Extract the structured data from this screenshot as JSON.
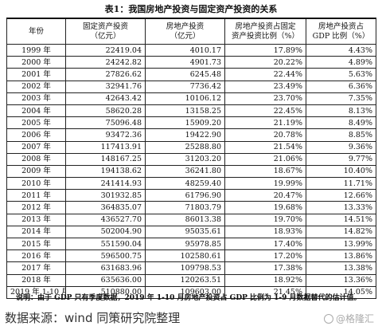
{
  "title": "表1：我国房地产投资与固定资产投资的关系",
  "headers": {
    "year": "年份",
    "fixed_investment": [
      "固定资产投资",
      "（亿元）"
    ],
    "real_estate_investment": [
      "房地产投资",
      "（亿元）"
    ],
    "re_share_of_fixed": [
      "房地产投资占固定",
      "资产投资比例（%）"
    ],
    "re_share_of_gdp": [
      "房地产投资占",
      "GDP 比例（%）"
    ]
  },
  "rows": [
    {
      "year": "1999 年",
      "fixed": "22419.04",
      "re": "4010.17",
      "fixed_ratio": "17.89%",
      "gdp_ratio": "4.43%"
    },
    {
      "year": "2000 年",
      "fixed": "24242.82",
      "re": "4901.73",
      "fixed_ratio": "20.22%",
      "gdp_ratio": "4.89%"
    },
    {
      "year": "2001 年",
      "fixed": "27826.62",
      "re": "6245.48",
      "fixed_ratio": "22.44%",
      "gdp_ratio": "5.63%"
    },
    {
      "year": "2002 年",
      "fixed": "32941.76",
      "re": "7736.42",
      "fixed_ratio": "23.49%",
      "gdp_ratio": "6.36%"
    },
    {
      "year": "2003 年",
      "fixed": "42643.42",
      "re": "10106.12",
      "fixed_ratio": "23.70%",
      "gdp_ratio": "7.35%"
    },
    {
      "year": "2004 年",
      "fixed": "58620.28",
      "re": "13158.25",
      "fixed_ratio": "22.45%",
      "gdp_ratio": "8.13%"
    },
    {
      "year": "2005 年",
      "fixed": "75096.48",
      "re": "15909.20",
      "fixed_ratio": "21.19%",
      "gdp_ratio": "8.49%"
    },
    {
      "year": "2006 年",
      "fixed": "93472.36",
      "re": "19422.90",
      "fixed_ratio": "20.78%",
      "gdp_ratio": "8.85%"
    },
    {
      "year": "2007 年",
      "fixed": "117413.91",
      "re": "25288.80",
      "fixed_ratio": "21.54%",
      "gdp_ratio": "9.36%"
    },
    {
      "year": "2008 年",
      "fixed": "148167.25",
      "re": "31203.20",
      "fixed_ratio": "21.06%",
      "gdp_ratio": "9.77%"
    },
    {
      "year": "2009 年",
      "fixed": "194138.62",
      "re": "36241.80",
      "fixed_ratio": "18.67%",
      "gdp_ratio": "10.40%"
    },
    {
      "year": "2010 年",
      "fixed": "241414.93",
      "re": "48259.40",
      "fixed_ratio": "19.99%",
      "gdp_ratio": "11.71%"
    },
    {
      "year": "2011 年",
      "fixed": "301932.85",
      "re": "61796.90",
      "fixed_ratio": "20.47%",
      "gdp_ratio": "12.66%"
    },
    {
      "year": "2012 年",
      "fixed": "364835.07",
      "re": "71803.79",
      "fixed_ratio": "19.68%",
      "gdp_ratio": "13.33%"
    },
    {
      "year": "2013 年",
      "fixed": "436527.70",
      "re": "86013.38",
      "fixed_ratio": "19.70%",
      "gdp_ratio": "14.51%"
    },
    {
      "year": "2014 年",
      "fixed": "502004.90",
      "re": "95035.61",
      "fixed_ratio": "18.93%",
      "gdp_ratio": "14.82%"
    },
    {
      "year": "2015 年",
      "fixed": "551590.04",
      "re": "95978.85",
      "fixed_ratio": "17.40%",
      "gdp_ratio": "13.99%"
    },
    {
      "year": "2016 年",
      "fixed": "596500.75",
      "re": "102580.61",
      "fixed_ratio": "17.20%",
      "gdp_ratio": "13.86%"
    },
    {
      "year": "2017 年",
      "fixed": "631683.96",
      "re": "109798.53",
      "fixed_ratio": "17.38%",
      "gdp_ratio": "13.38%"
    },
    {
      "year": "2018 年",
      "fixed": "635636.00",
      "re": "120263.51",
      "fixed_ratio": "18.92%",
      "gdp_ratio": "13.36%"
    },
    {
      "year": "2019 年 1-10 月",
      "fixed": "510880.00",
      "re": "109603.00",
      "fixed_ratio": "21.45%",
      "gdp_ratio": "14.05%"
    }
  ],
  "note": "说明：由于 GDP 只有季度数据，2019 年 1-10 月房地产投资占 GDP 比例为 1-9 月数据替代的估计值。",
  "source": "数据来源：wind 同策研究院整理",
  "watermark": "@格隆汇",
  "colors": {
    "text": "#111111",
    "border": "#222222",
    "watermark": "#aaaaaa"
  }
}
